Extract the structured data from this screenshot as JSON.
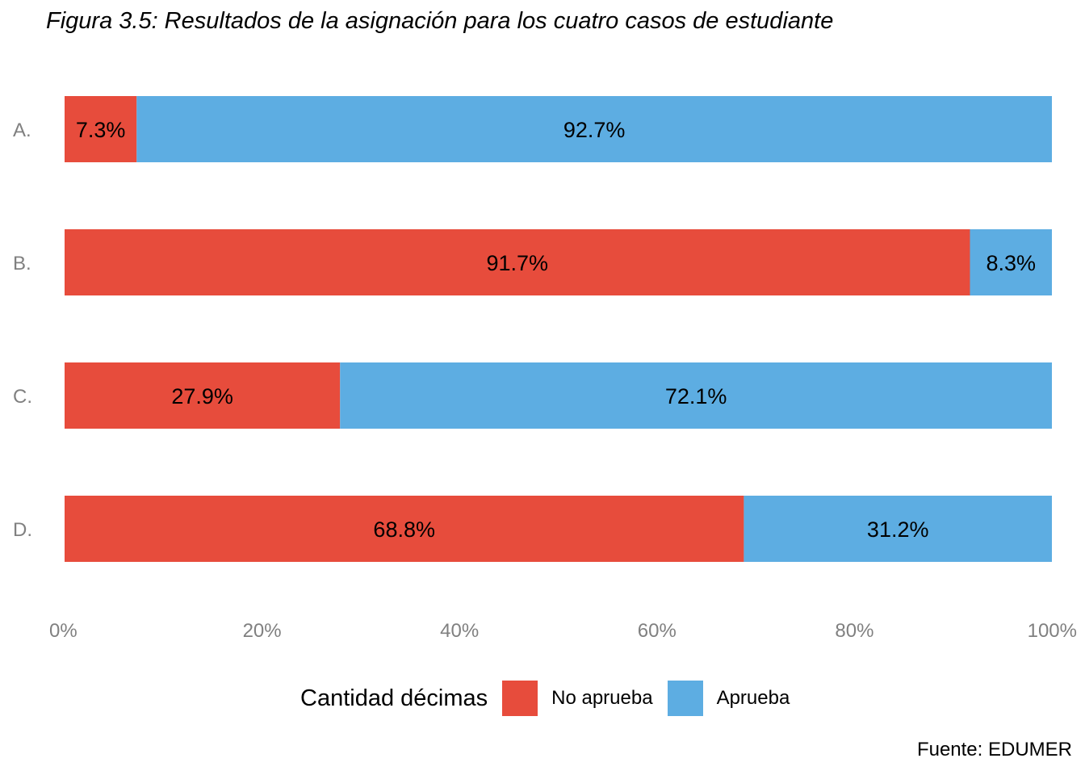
{
  "chart_data": {
    "type": "bar",
    "orientation": "horizontal",
    "stacked": true,
    "title": "Figura 3.5: Resultados de la asignación para los cuatro casos de estudiante",
    "caption": "Fuente: EDUMER",
    "categories": [
      "A.",
      "B.",
      "C.",
      "D."
    ],
    "series": [
      {
        "name": "No aprueba",
        "color": "#E74C3C",
        "values": [
          7.3,
          91.7,
          27.9,
          68.8
        ],
        "labels": [
          "7.3%",
          "91.7%",
          "27.9%",
          "68.8%"
        ]
      },
      {
        "name": "Aprueba",
        "color": "#5DADE2",
        "values": [
          92.7,
          8.3,
          72.1,
          31.2
        ],
        "labels": [
          "92.7%",
          "8.3%",
          "72.1%",
          "31.2%"
        ]
      }
    ],
    "xlim": [
      0,
      100
    ],
    "x_ticks": [
      "0%",
      "20%",
      "40%",
      "60%",
      "80%",
      "100%"
    ],
    "x_tick_values": [
      0,
      20,
      40,
      60,
      80,
      100
    ],
    "grid": false,
    "legend": {
      "title": "Cantidad décimas",
      "position": "bottom"
    }
  }
}
